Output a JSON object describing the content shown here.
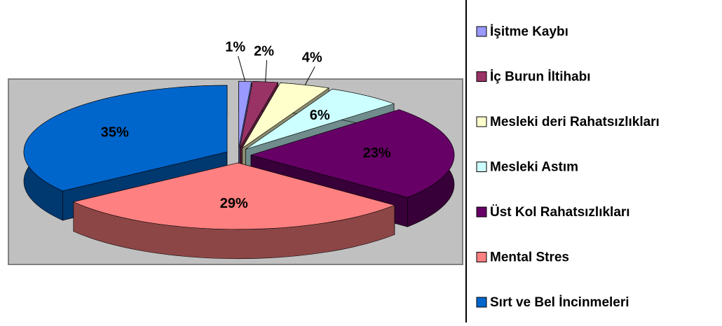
{
  "chart_data": {
    "type": "pie3d",
    "categories": [
      "İşitme Kaybı",
      "İç Burun İltihabı",
      "Mesleki deri Rahatsızlıkları",
      "Mesleki Astım",
      "Üst Kol Rahatsızlıkları",
      "Mental Stres",
      "Sırt ve Bel İncinmeleri"
    ],
    "values": [
      1,
      2,
      4,
      6,
      23,
      29,
      35
    ],
    "value_labels": [
      "1%",
      "2%",
      "4%",
      "6%",
      "23%",
      "29%",
      "35%"
    ],
    "colors": [
      "#9999ff",
      "#993366",
      "#ffffcc",
      "#ccffff",
      "#660066",
      "#ff8080",
      "#0066cc"
    ],
    "legend": "right"
  }
}
